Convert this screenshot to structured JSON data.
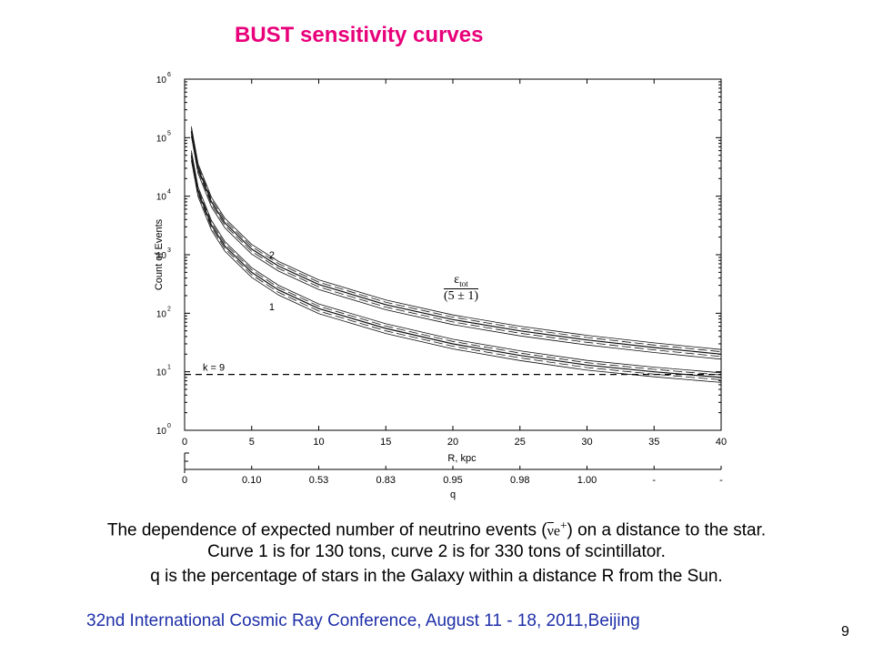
{
  "title": "BUST sensitivity curves",
  "annotation_fraction": {
    "numerator": "ε",
    "numerator_sub": "tot",
    "denominator": "(5 ± 1)"
  },
  "caption": {
    "line1_before": "The dependence of expected number of neutrino events (",
    "nu_symbol": "ν",
    "e_symbol": "e",
    "plus_symbol": "+",
    "line1_after": ") on a distance to the star.",
    "line2": "Curve 1 is for 130 tons, curve 2 is for 330 tons of scintillator.",
    "line3": "q is the percentage of stars in the Galaxy within a distance R from the Sun."
  },
  "conference": "32nd International Cosmic Ray Conference, August 11 - 18, 2011,Beijing",
  "page_number": "9",
  "colors": {
    "title": "#e8007a",
    "conference": "#1e2fa8"
  },
  "chart_data": {
    "type": "line",
    "xlabel": "R, kpc",
    "ylabel": "Count of Events",
    "xlim": [
      0,
      40
    ],
    "ylim": [
      1,
      1000000
    ],
    "yscale": "log",
    "x_ticks": [
      "0",
      "5",
      "10",
      "15",
      "20",
      "25",
      "30",
      "35",
      "40"
    ],
    "y_ticks": [
      "10^0",
      "10^1",
      "10^2",
      "10^3",
      "10^4",
      "10^5",
      "10^6"
    ],
    "grid": false,
    "threshold": {
      "label": "k = 9",
      "value": 9
    },
    "series": [
      {
        "name": "1",
        "x": [
          0.5,
          1,
          2,
          3,
          5,
          7,
          10,
          15,
          20,
          25,
          30,
          35,
          40
        ],
        "y": [
          50000,
          12000,
          3200,
          1400,
          500,
          250,
          120,
          55,
          30,
          19,
          13,
          10,
          8
        ]
      },
      {
        "name": "2",
        "x": [
          0.5,
          1,
          2,
          3,
          5,
          7,
          10,
          15,
          20,
          25,
          30,
          35,
          40
        ],
        "y": [
          130000,
          30000,
          8000,
          3500,
          1250,
          640,
          310,
          140,
          78,
          50,
          35,
          26,
          20
        ]
      }
    ],
    "secondary_axis": {
      "label": "q",
      "ticks": [
        "0",
        "0.10",
        "0.53",
        "0.83",
        "0.95",
        "0.98",
        "1.00",
        "-",
        "-"
      ]
    }
  }
}
